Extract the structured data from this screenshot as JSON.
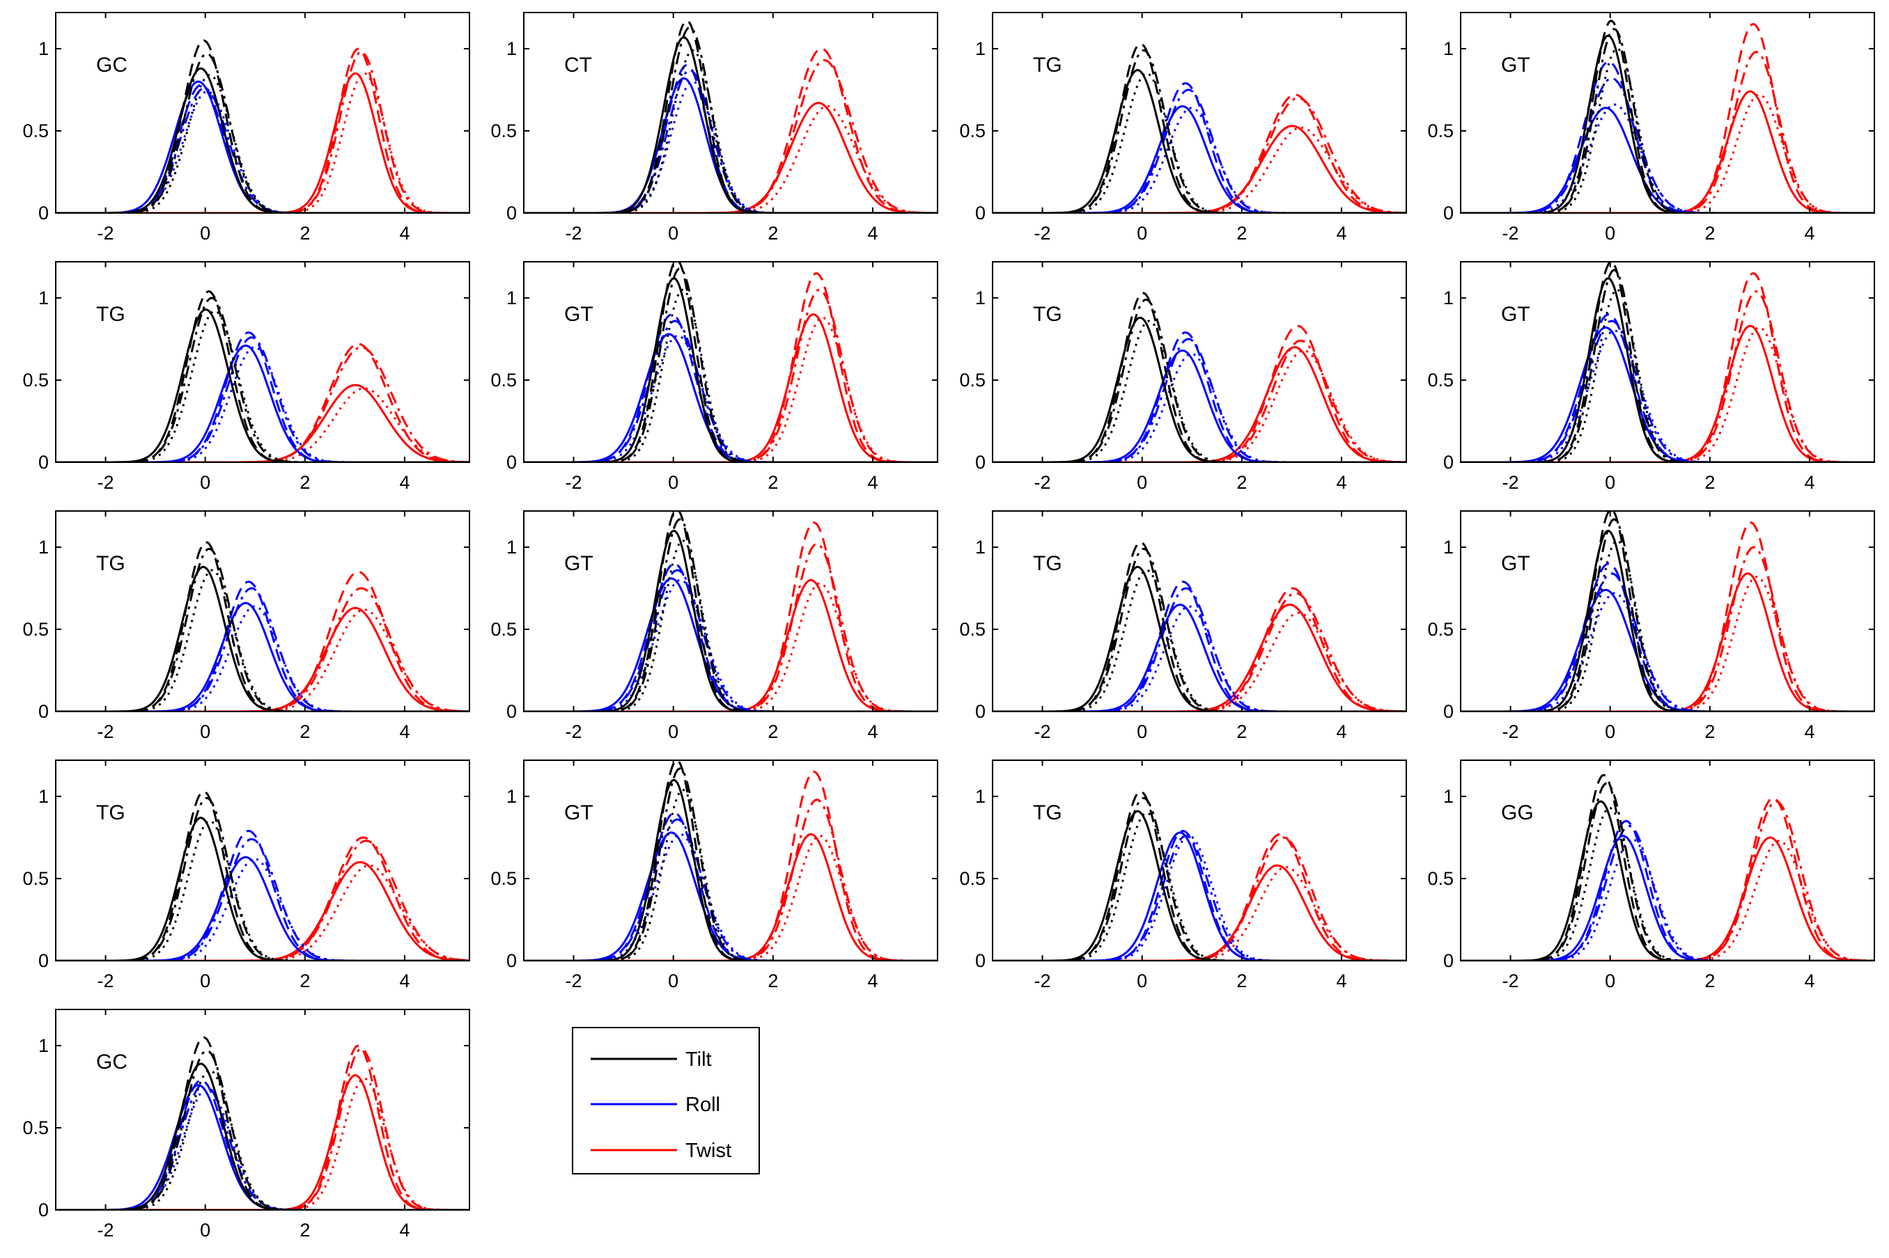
{
  "chart_data": {
    "type": "line",
    "layout": "small-multiples grid, 4 columns x 5 rows",
    "xlim": [
      -3,
      5.3
    ],
    "ylim": [
      0,
      1.22
    ],
    "xticks": [
      -2,
      0,
      2,
      4
    ],
    "yticks": [
      0,
      0.5,
      1
    ],
    "grid": false,
    "line_styles": [
      "solid",
      "dashed",
      "dash-dot",
      "dotted"
    ],
    "colors": {
      "Tilt": "#000000",
      "Roll": "#0000ff",
      "Twist": "#ff0000"
    },
    "legend": {
      "placement": "below-right of last panel",
      "entries": [
        {
          "label": "Tilt",
          "color": "#000000"
        },
        {
          "label": "Roll",
          "color": "#0000ff"
        },
        {
          "label": "Twist",
          "color": "#ff0000"
        }
      ]
    },
    "panels": [
      {
        "label": "GC",
        "tilt": {
          "mu": 0.0,
          "sigma": 0.44,
          "amps": [
            0.88,
            1.05,
            0.97,
            0.84
          ]
        },
        "roll": {
          "mu": -0.05,
          "sigma": 0.47,
          "amps": [
            0.8,
            0.78,
            0.76,
            0.74
          ]
        },
        "twist": {
          "mu": 3.1,
          "sigma": 0.42,
          "amps": [
            0.85,
            1.0,
            0.98,
            0.85
          ]
        }
      },
      {
        "label": "CT",
        "tilt": {
          "mu": 0.3,
          "sigma": 0.4,
          "amps": [
            1.07,
            1.17,
            1.13,
            0.99
          ]
        },
        "roll": {
          "mu": 0.3,
          "sigma": 0.43,
          "amps": [
            0.82,
            0.9,
            0.87,
            0.8
          ]
        },
        "twist": {
          "mu": 3.0,
          "sigma": 0.55,
          "amps": [
            0.67,
            1.0,
            0.93,
            0.65
          ]
        }
      },
      {
        "label": "TG",
        "tilt": {
          "mu": 0.0,
          "sigma": 0.43,
          "amps": [
            0.87,
            1.03,
            0.99,
            0.85
          ]
        },
        "roll": {
          "mu": 0.9,
          "sigma": 0.48,
          "amps": [
            0.65,
            0.79,
            0.75,
            0.64
          ]
        },
        "twist": {
          "mu": 3.1,
          "sigma": 0.6,
          "amps": [
            0.53,
            0.72,
            0.7,
            0.52
          ]
        }
      },
      {
        "label": "GT",
        "tilt": {
          "mu": 0.05,
          "sigma": 0.38,
          "amps": [
            1.08,
            1.17,
            1.12,
            1.0
          ]
        },
        "roll": {
          "mu": 0.0,
          "sigma": 0.5,
          "amps": [
            0.64,
            0.92,
            0.82,
            0.66
          ]
        },
        "twist": {
          "mu": 2.9,
          "sigma": 0.45,
          "amps": [
            0.74,
            1.15,
            0.98,
            0.72
          ]
        }
      },
      {
        "label": "TG",
        "tilt": {
          "mu": 0.1,
          "sigma": 0.45,
          "amps": [
            0.93,
            1.04,
            1.0,
            0.92
          ]
        },
        "roll": {
          "mu": 0.9,
          "sigma": 0.48,
          "amps": [
            0.71,
            0.79,
            0.76,
            0.7
          ]
        },
        "twist": {
          "mu": 3.1,
          "sigma": 0.6,
          "amps": [
            0.47,
            0.72,
            0.7,
            0.45
          ]
        }
      },
      {
        "label": "GT",
        "tilt": {
          "mu": 0.1,
          "sigma": 0.38,
          "amps": [
            1.12,
            1.23,
            1.18,
            1.05
          ]
        },
        "roll": {
          "mu": 0.0,
          "sigma": 0.48,
          "amps": [
            0.78,
            0.9,
            0.86,
            0.77
          ]
        },
        "twist": {
          "mu": 2.9,
          "sigma": 0.45,
          "amps": [
            0.9,
            1.15,
            1.05,
            0.88
          ]
        }
      },
      {
        "label": "TG",
        "tilt": {
          "mu": 0.05,
          "sigma": 0.43,
          "amps": [
            0.88,
            1.03,
            0.99,
            0.86
          ]
        },
        "roll": {
          "mu": 0.9,
          "sigma": 0.48,
          "amps": [
            0.68,
            0.79,
            0.75,
            0.66
          ]
        },
        "twist": {
          "mu": 3.15,
          "sigma": 0.55,
          "amps": [
            0.7,
            0.83,
            0.74,
            0.68
          ]
        }
      },
      {
        "label": "GT",
        "tilt": {
          "mu": 0.05,
          "sigma": 0.38,
          "amps": [
            1.12,
            1.22,
            1.17,
            1.05
          ]
        },
        "roll": {
          "mu": 0.0,
          "sigma": 0.5,
          "amps": [
            0.82,
            0.9,
            0.86,
            0.8
          ]
        },
        "twist": {
          "mu": 2.9,
          "sigma": 0.45,
          "amps": [
            0.83,
            1.15,
            1.04,
            0.82
          ]
        }
      },
      {
        "label": "TG",
        "tilt": {
          "mu": 0.05,
          "sigma": 0.43,
          "amps": [
            0.88,
            1.03,
            0.99,
            0.86
          ]
        },
        "roll": {
          "mu": 0.9,
          "sigma": 0.48,
          "amps": [
            0.66,
            0.79,
            0.75,
            0.64
          ]
        },
        "twist": {
          "mu": 3.1,
          "sigma": 0.58,
          "amps": [
            0.63,
            0.85,
            0.75,
            0.62
          ]
        }
      },
      {
        "label": "GT",
        "tilt": {
          "mu": 0.1,
          "sigma": 0.38,
          "amps": [
            1.1,
            1.23,
            1.17,
            1.04
          ]
        },
        "roll": {
          "mu": 0.05,
          "sigma": 0.48,
          "amps": [
            0.81,
            0.9,
            0.86,
            0.8
          ]
        },
        "twist": {
          "mu": 2.85,
          "sigma": 0.45,
          "amps": [
            0.8,
            1.15,
            1.02,
            0.78
          ]
        }
      },
      {
        "label": "TG",
        "tilt": {
          "mu": 0.0,
          "sigma": 0.43,
          "amps": [
            0.88,
            1.03,
            0.99,
            0.86
          ]
        },
        "roll": {
          "mu": 0.85,
          "sigma": 0.48,
          "amps": [
            0.65,
            0.79,
            0.75,
            0.64
          ]
        },
        "twist": {
          "mu": 3.05,
          "sigma": 0.58,
          "amps": [
            0.65,
            0.75,
            0.72,
            0.6
          ]
        }
      },
      {
        "label": "GT",
        "tilt": {
          "mu": 0.05,
          "sigma": 0.38,
          "amps": [
            1.1,
            1.23,
            1.17,
            1.04
          ]
        },
        "roll": {
          "mu": 0.0,
          "sigma": 0.5,
          "amps": [
            0.74,
            0.9,
            0.84,
            0.72
          ]
        },
        "twist": {
          "mu": 2.85,
          "sigma": 0.45,
          "amps": [
            0.84,
            1.15,
            1.0,
            0.82
          ]
        }
      },
      {
        "label": "TG",
        "tilt": {
          "mu": 0.0,
          "sigma": 0.43,
          "amps": [
            0.87,
            1.03,
            0.99,
            0.85
          ]
        },
        "roll": {
          "mu": 0.9,
          "sigma": 0.5,
          "amps": [
            0.63,
            0.79,
            0.74,
            0.62
          ]
        },
        "twist": {
          "mu": 3.2,
          "sigma": 0.6,
          "amps": [
            0.6,
            0.75,
            0.73,
            0.58
          ]
        }
      },
      {
        "label": "GT",
        "tilt": {
          "mu": 0.1,
          "sigma": 0.38,
          "amps": [
            1.1,
            1.22,
            1.17,
            1.04
          ]
        },
        "roll": {
          "mu": 0.05,
          "sigma": 0.48,
          "amps": [
            0.78,
            0.9,
            0.86,
            0.77
          ]
        },
        "twist": {
          "mu": 2.85,
          "sigma": 0.45,
          "amps": [
            0.77,
            1.15,
            0.98,
            0.76
          ]
        }
      },
      {
        "label": "TG",
        "tilt": {
          "mu": 0.0,
          "sigma": 0.43,
          "amps": [
            0.91,
            1.03,
            0.99,
            0.9
          ]
        },
        "roll": {
          "mu": 0.85,
          "sigma": 0.46,
          "amps": [
            0.78,
            0.79,
            0.76,
            0.76
          ]
        },
        "twist": {
          "mu": 2.8,
          "sigma": 0.55,
          "amps": [
            0.58,
            0.77,
            0.75,
            0.57
          ]
        }
      },
      {
        "label": "GG",
        "tilt": {
          "mu": -0.1,
          "sigma": 0.4,
          "amps": [
            0.97,
            1.13,
            1.08,
            0.93
          ]
        },
        "roll": {
          "mu": 0.35,
          "sigma": 0.45,
          "amps": [
            0.76,
            0.85,
            0.82,
            0.74
          ]
        },
        "twist": {
          "mu": 3.3,
          "sigma": 0.48,
          "amps": [
            0.75,
            0.99,
            0.97,
            0.73
          ]
        }
      },
      {
        "label": "GC",
        "tilt": {
          "mu": 0.0,
          "sigma": 0.44,
          "amps": [
            0.89,
            1.05,
            0.97,
            0.85
          ]
        },
        "roll": {
          "mu": -0.05,
          "sigma": 0.47,
          "amps": [
            0.76,
            0.79,
            0.77,
            0.74
          ]
        },
        "twist": {
          "mu": 3.1,
          "sigma": 0.42,
          "amps": [
            0.82,
            1.0,
            0.98,
            0.8
          ]
        }
      }
    ]
  }
}
